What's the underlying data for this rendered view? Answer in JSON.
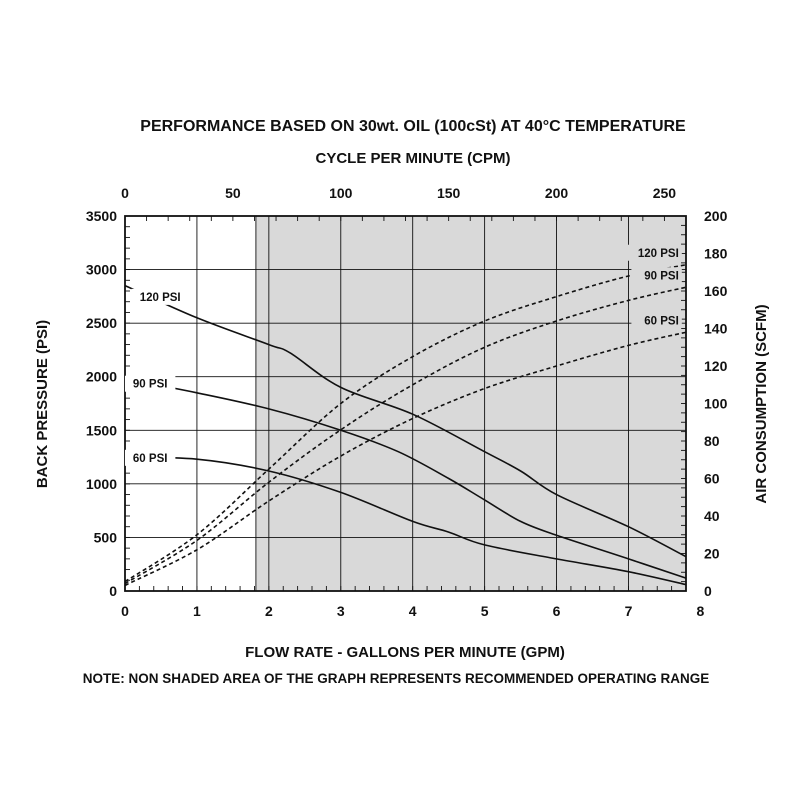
{
  "title": "PERFORMANCE BASED ON 30wt. OIL (100cSt) AT 40°C TEMPERATURE",
  "note": "NOTE: NON SHADED AREA OF THE GRAPH REPRESENTS RECOMMENDED OPERATING RANGE",
  "colors": {
    "shade": "#d9d9d9",
    "ink": "#111111",
    "grid": "#111111"
  },
  "chart_data": {
    "type": "line",
    "grid": true,
    "shaded_region": {
      "x_from": 1.82,
      "x_to": 7.8
    },
    "x_axis": {
      "label": "FLOW RATE - GALLONS PER MINUTE (GPM)",
      "range": [
        0,
        7.8
      ],
      "ticks": [
        0,
        1,
        2,
        3,
        4,
        5,
        6,
        7,
        8
      ]
    },
    "x2_axis": {
      "label": "CYCLE PER MINUTE (CPM)",
      "position": "top",
      "range": [
        0,
        260
      ],
      "ticks": [
        0,
        50,
        100,
        150,
        200,
        250
      ]
    },
    "y_axis": {
      "label": "BACK PRESSURE (PSI)",
      "position": "left",
      "range": [
        0,
        3500
      ],
      "ticks": [
        0,
        500,
        1000,
        1500,
        2000,
        2500,
        3000,
        3500
      ]
    },
    "y2_axis": {
      "label": "AIR CONSUMPTION (SCFM)",
      "position": "right",
      "range": [
        0,
        200
      ],
      "ticks": [
        0,
        20,
        40,
        60,
        80,
        100,
        120,
        140,
        160,
        180,
        200
      ]
    },
    "series": [
      {
        "name": "120 PSI",
        "kind": "back_pressure",
        "axis": "left",
        "style": "solid",
        "x": [
          0,
          1,
          2,
          2.3,
          3,
          4,
          5,
          5.5,
          6,
          7,
          7.8
        ],
        "y": [
          2850,
          2550,
          2300,
          2220,
          1900,
          1650,
          1300,
          1120,
          900,
          600,
          320
        ]
      },
      {
        "name": "90 PSI",
        "kind": "back_pressure",
        "axis": "left",
        "style": "solid",
        "x": [
          0,
          1,
          2,
          3,
          3.8,
          4.5,
          5,
          5.5,
          6,
          7,
          7.8
        ],
        "y": [
          1980,
          1850,
          1700,
          1500,
          1300,
          1050,
          850,
          650,
          520,
          300,
          120
        ]
      },
      {
        "name": "60 PSI",
        "kind": "back_pressure",
        "axis": "left",
        "style": "solid",
        "x": [
          0,
          1,
          2,
          3,
          4,
          4.5,
          5,
          6,
          7,
          7.8
        ],
        "y": [
          1250,
          1230,
          1120,
          920,
          650,
          550,
          430,
          300,
          180,
          60
        ]
      },
      {
        "name": "120 PSI",
        "kind": "air_consumption",
        "axis": "right",
        "style": "dashed",
        "x": [
          0,
          1,
          2,
          3,
          4,
          5,
          6,
          7,
          7.8
        ],
        "y": [
          5,
          30,
          65,
          100,
          125,
          144,
          157,
          168,
          174
        ]
      },
      {
        "name": "90 PSI",
        "kind": "air_consumption",
        "axis": "right",
        "style": "dashed",
        "x": [
          0,
          1,
          2,
          3,
          4,
          5,
          6,
          7,
          7.8
        ],
        "y": [
          4,
          27,
          58,
          86,
          110,
          130,
          144,
          155,
          162
        ]
      },
      {
        "name": "60 PSI",
        "kind": "air_consumption",
        "axis": "right",
        "style": "dashed",
        "x": [
          0,
          1,
          2,
          3,
          4,
          5,
          6,
          7,
          7.8
        ],
        "y": [
          3,
          22,
          48,
          72,
          92,
          108,
          120,
          131,
          138
        ]
      }
    ]
  }
}
